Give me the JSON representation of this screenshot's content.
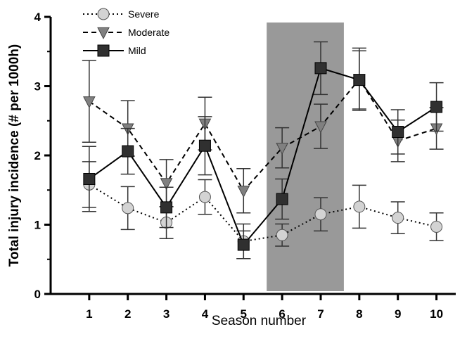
{
  "chart_data": {
    "type": "line",
    "xlabel": "Season number",
    "ylabel": "Total injury incidence (# per 1000h)",
    "x": [
      1,
      2,
      3,
      4,
      5,
      6,
      7,
      8,
      9,
      10
    ],
    "xlim": [
      0,
      10.5
    ],
    "ylim": [
      0,
      4
    ],
    "yticks": [
      0,
      1,
      2,
      3,
      4
    ],
    "grid": false,
    "legend_position": "top-left",
    "highlight_band": {
      "x_start": 5.6,
      "x_end": 7.6,
      "color": "#999999"
    },
    "series": [
      {
        "name": "Severe",
        "line_style": "dotted",
        "marker": "circle",
        "marker_color": "#d3d3d3",
        "values": [
          1.58,
          1.24,
          1.03,
          1.4,
          0.76,
          0.85,
          1.15,
          1.26,
          1.1,
          0.97
        ],
        "error": [
          0.33,
          0.31,
          0.23,
          0.25,
          0.25,
          0.16,
          0.24,
          0.31,
          0.23,
          0.2
        ]
      },
      {
        "name": "Moderate",
        "line_style": "dashed",
        "marker": "triangle-down",
        "marker_color": "#808080",
        "values": [
          2.78,
          2.39,
          1.6,
          2.46,
          1.49,
          2.11,
          2.42,
          3.1,
          2.21,
          2.39
        ],
        "error": [
          0.59,
          0.4,
          0.34,
          0.38,
          0.32,
          0.29,
          0.32,
          0.45,
          0.3,
          0.3
        ]
      },
      {
        "name": "Mild",
        "line_style": "solid",
        "marker": "square",
        "marker_color": "#303030",
        "values": [
          1.66,
          2.06,
          1.25,
          2.14,
          0.71,
          1.37,
          3.26,
          3.09,
          2.34,
          2.7
        ],
        "error": [
          0.47,
          0.33,
          0.29,
          0.42,
          0.2,
          0.29,
          0.38,
          0.42,
          0.32,
          0.35
        ]
      }
    ]
  }
}
